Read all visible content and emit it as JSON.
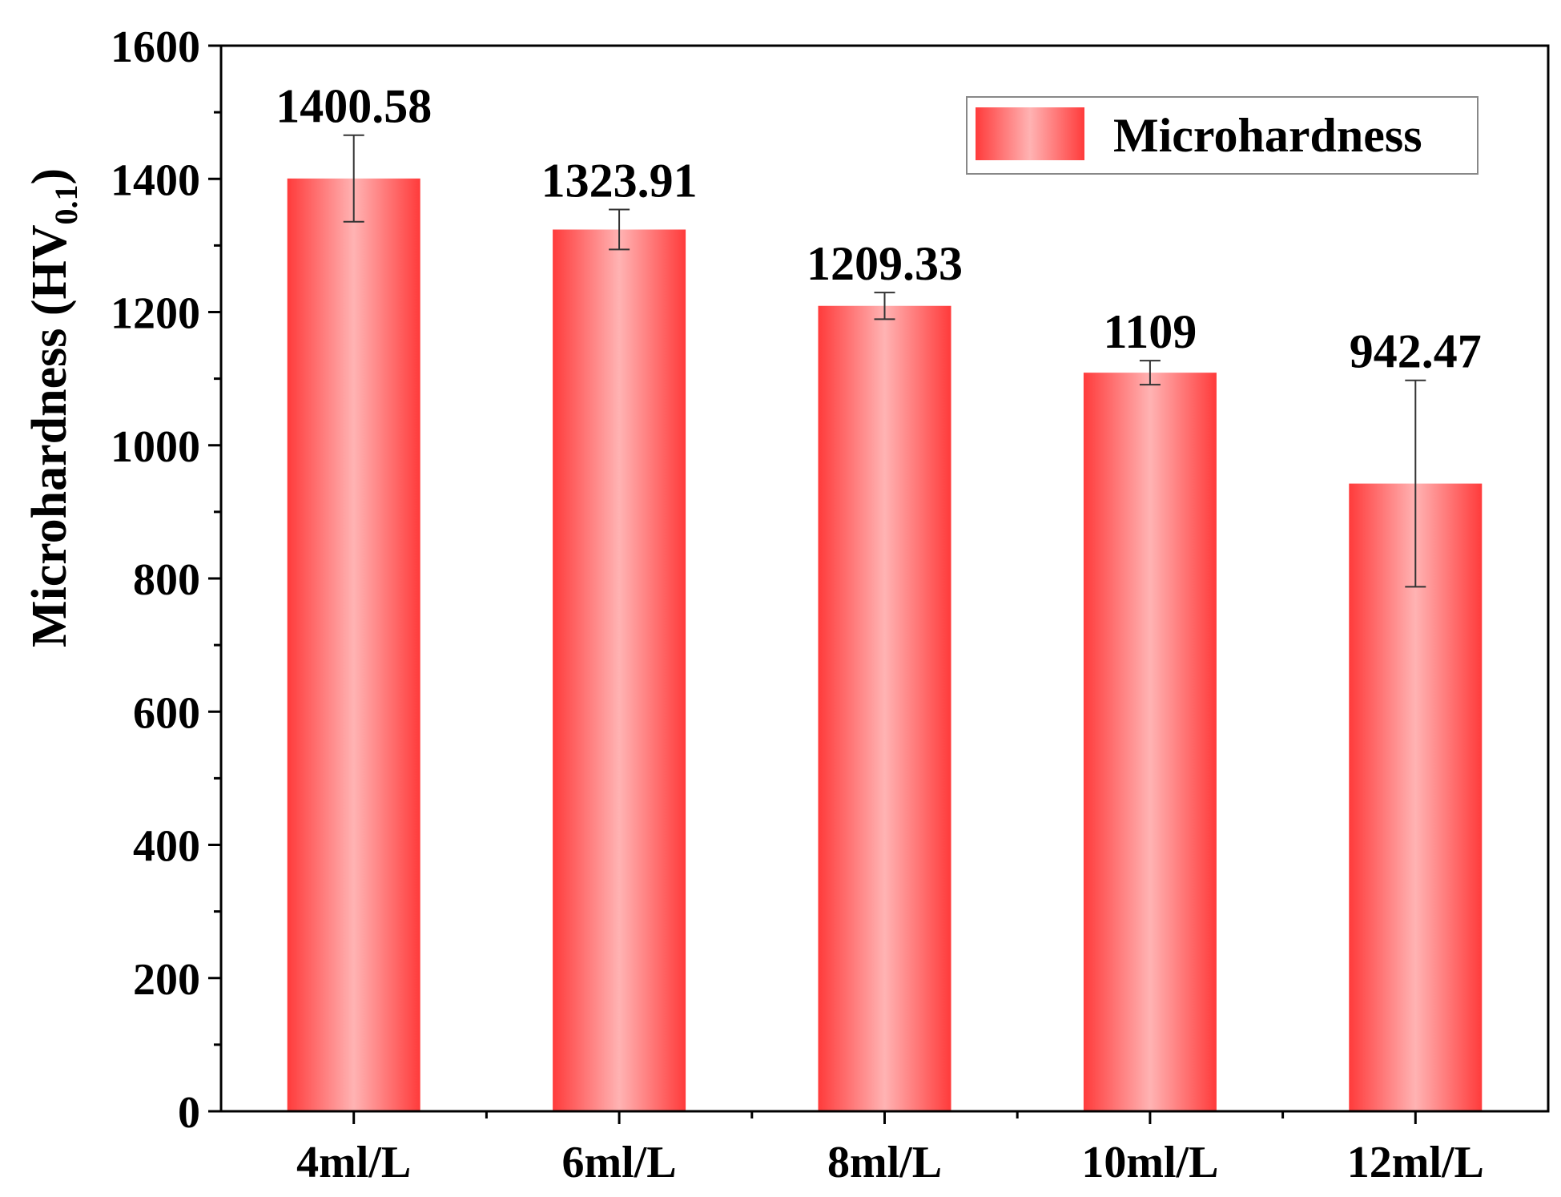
{
  "chart_data": {
    "type": "bar",
    "categories": [
      "4ml/L",
      "6ml/L",
      "8ml/L",
      "10ml/L",
      "12ml/L"
    ],
    "series": [
      {
        "name": "Microhardness",
        "values": [
          1400.58,
          1323.91,
          1209.33,
          1109,
          942.47
        ],
        "errors": [
          65,
          30,
          20,
          18,
          155
        ],
        "data_labels": [
          "1400.58",
          "1323.91",
          "1209.33",
          "1109",
          "942.47"
        ]
      }
    ],
    "ylabel_main": "Microhardness (HV",
    "ylabel_sub": "0.1",
    "ylabel_close": ")",
    "ylim": [
      0,
      1600
    ],
    "yticks": [
      0,
      200,
      400,
      600,
      800,
      1000,
      1200,
      1400,
      1600
    ],
    "grid": false,
    "legend_position": "top-right",
    "colors": {
      "bar_edge": "#ff3b3b",
      "bar_center": "#ffb3b3",
      "axis": "#000000"
    }
  }
}
